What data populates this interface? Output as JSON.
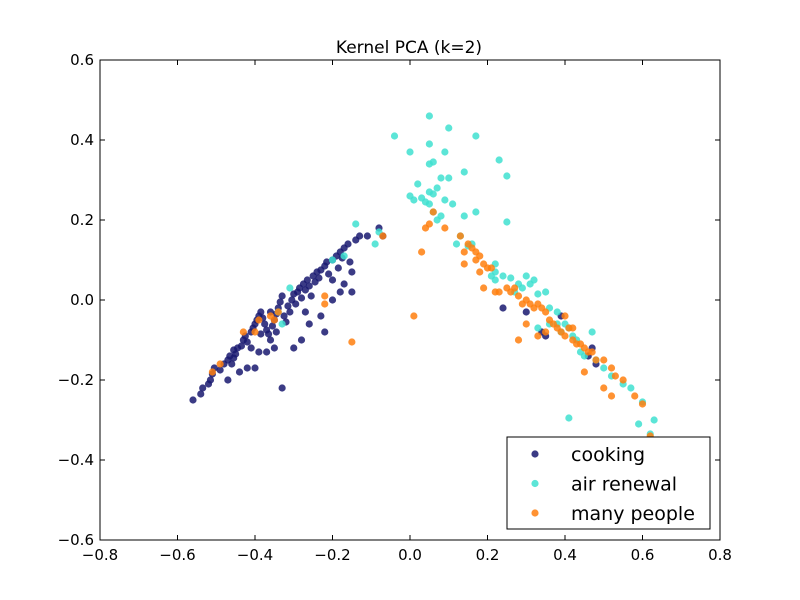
{
  "chart_data": {
    "type": "scatter",
    "title": "Kernel PCA (k=2)",
    "xlabel": "",
    "ylabel": "",
    "xlim": [
      -0.8,
      0.8
    ],
    "ylim": [
      -0.6,
      0.6
    ],
    "xticks": [
      -0.8,
      -0.6,
      -0.4,
      -0.2,
      0.0,
      0.2,
      0.4,
      0.6,
      0.8
    ],
    "xtick_labels": [
      "−0.8",
      "−0.6",
      "−0.4",
      "−0.2",
      "0.0",
      "0.2",
      "0.4",
      "0.6",
      "0.8"
    ],
    "yticks": [
      -0.6,
      -0.4,
      -0.2,
      0.0,
      0.2,
      0.4,
      0.6
    ],
    "ytick_labels": [
      "−0.6",
      "−0.4",
      "−0.2",
      "0.0",
      "0.2",
      "0.4",
      "0.6"
    ],
    "grid": false,
    "legend_position": "bottom-right",
    "series": [
      {
        "name": "cooking",
        "color": "#191970",
        "points": [
          [
            -0.56,
            -0.25
          ],
          [
            -0.54,
            -0.235
          ],
          [
            -0.535,
            -0.22
          ],
          [
            -0.52,
            -0.21
          ],
          [
            -0.515,
            -0.2
          ],
          [
            -0.51,
            -0.185
          ],
          [
            -0.505,
            -0.17
          ],
          [
            -0.49,
            -0.175
          ],
          [
            -0.48,
            -0.16
          ],
          [
            -0.47,
            -0.15
          ],
          [
            -0.465,
            -0.14
          ],
          [
            -0.455,
            -0.125
          ],
          [
            -0.45,
            -0.135
          ],
          [
            -0.445,
            -0.12
          ],
          [
            -0.435,
            -0.115
          ],
          [
            -0.43,
            -0.1
          ],
          [
            -0.425,
            -0.09
          ],
          [
            -0.42,
            -0.105
          ],
          [
            -0.41,
            -0.08
          ],
          [
            -0.405,
            -0.07
          ],
          [
            -0.4,
            -0.06
          ],
          [
            -0.395,
            -0.05
          ],
          [
            -0.39,
            -0.04
          ],
          [
            -0.385,
            -0.03
          ],
          [
            -0.38,
            -0.045
          ],
          [
            -0.375,
            -0.06
          ],
          [
            -0.37,
            -0.075
          ],
          [
            -0.365,
            -0.085
          ],
          [
            -0.36,
            -0.1
          ],
          [
            -0.355,
            -0.065
          ],
          [
            -0.35,
            -0.05
          ],
          [
            -0.345,
            -0.035
          ],
          [
            -0.34,
            -0.02
          ],
          [
            -0.335,
            -0.005
          ],
          [
            -0.33,
            0.01
          ],
          [
            -0.325,
            -0.04
          ],
          [
            -0.32,
            -0.055
          ],
          [
            -0.315,
            -0.015
          ],
          [
            -0.31,
            -0.03
          ],
          [
            -0.305,
            0.0
          ],
          [
            -0.3,
            0.015
          ],
          [
            -0.295,
            -0.01
          ],
          [
            -0.29,
            0.02
          ],
          [
            -0.285,
            0.03
          ],
          [
            -0.28,
            0.005
          ],
          [
            -0.275,
            0.04
          ],
          [
            -0.27,
            0.025
          ],
          [
            -0.265,
            0.05
          ],
          [
            -0.26,
            0.035
          ],
          [
            -0.255,
            0.01
          ],
          [
            -0.25,
            0.06
          ],
          [
            -0.245,
            0.045
          ],
          [
            -0.24,
            0.07
          ],
          [
            -0.235,
            0.055
          ],
          [
            -0.23,
            0.075
          ],
          [
            -0.22,
            0.085
          ],
          [
            -0.215,
            0.095
          ],
          [
            -0.21,
            0.065
          ],
          [
            -0.2,
            0.1
          ],
          [
            -0.19,
            0.11
          ],
          [
            -0.185,
            0.08
          ],
          [
            -0.18,
            0.12
          ],
          [
            -0.175,
            0.105
          ],
          [
            -0.17,
            0.13
          ],
          [
            -0.16,
            0.14
          ],
          [
            -0.155,
            0.095
          ],
          [
            -0.15,
            0.07
          ],
          [
            -0.14,
            0.15
          ],
          [
            -0.13,
            0.16
          ],
          [
            -0.11,
            0.16
          ],
          [
            -0.08,
            0.18
          ],
          [
            -0.07,
            0.16
          ],
          [
            -0.47,
            -0.2
          ],
          [
            -0.44,
            -0.18
          ],
          [
            -0.42,
            -0.17
          ],
          [
            -0.4,
            -0.17
          ],
          [
            -0.39,
            -0.13
          ],
          [
            -0.37,
            -0.13
          ],
          [
            -0.35,
            -0.12
          ],
          [
            -0.33,
            -0.22
          ],
          [
            -0.3,
            -0.12
          ],
          [
            -0.28,
            -0.1
          ],
          [
            -0.26,
            -0.06
          ],
          [
            -0.23,
            -0.04
          ],
          [
            -0.22,
            -0.08
          ],
          [
            -0.2,
            0.0
          ],
          [
            -0.18,
            0.02
          ],
          [
            -0.15,
            0.02
          ],
          [
            -0.46,
            -0.16
          ],
          [
            -0.455,
            -0.145
          ],
          [
            -0.41,
            -0.12
          ],
          [
            -0.385,
            -0.085
          ],
          [
            -0.36,
            -0.03
          ],
          [
            -0.345,
            -0.08
          ],
          [
            -0.27,
            -0.03
          ],
          [
            -0.2,
            0.05
          ],
          [
            -0.17,
            0.04
          ],
          [
            0.24,
            -0.02
          ],
          [
            0.3,
            -0.03
          ],
          [
            0.34,
            -0.08
          ],
          [
            0.35,
            -0.09
          ],
          [
            0.39,
            -0.04
          ],
          [
            0.46,
            -0.14
          ],
          [
            0.47,
            -0.12
          ],
          [
            0.48,
            -0.16
          ]
        ]
      },
      {
        "name": "air renewal",
        "color": "#40e0d0",
        "points": [
          [
            0.05,
            0.46
          ],
          [
            0.1,
            0.43
          ],
          [
            -0.04,
            0.41
          ],
          [
            0.17,
            0.41
          ],
          [
            0.05,
            0.39
          ],
          [
            0.0,
            0.37
          ],
          [
            0.09,
            0.37
          ],
          [
            0.06,
            0.345
          ],
          [
            0.05,
            0.34
          ],
          [
            0.23,
            0.35
          ],
          [
            0.14,
            0.32
          ],
          [
            0.25,
            0.31
          ],
          [
            0.08,
            0.305
          ],
          [
            0.1,
            0.305
          ],
          [
            0.07,
            0.28
          ],
          [
            0.05,
            0.27
          ],
          [
            0.06,
            0.265
          ],
          [
            0.02,
            0.29
          ],
          [
            0.0,
            0.26
          ],
          [
            0.01,
            0.25
          ],
          [
            0.03,
            0.255
          ],
          [
            0.04,
            0.245
          ],
          [
            0.09,
            0.25
          ],
          [
            0.11,
            0.24
          ],
          [
            0.17,
            0.22
          ],
          [
            0.25,
            0.195
          ],
          [
            0.07,
            0.2
          ],
          [
            0.05,
            0.24
          ],
          [
            0.06,
            0.22
          ],
          [
            0.08,
            0.21
          ],
          [
            0.14,
            0.21
          ],
          [
            0.13,
            0.16
          ],
          [
            0.12,
            0.14
          ],
          [
            0.15,
            0.135
          ],
          [
            0.16,
            0.14
          ],
          [
            0.22,
            0.07
          ],
          [
            0.24,
            0.06
          ],
          [
            0.26,
            0.055
          ],
          [
            0.22,
            0.05
          ],
          [
            0.28,
            0.04
          ],
          [
            0.29,
            0.03
          ],
          [
            0.31,
            0.04
          ],
          [
            0.3,
            0.06
          ],
          [
            0.32,
            0.05
          ],
          [
            0.33,
            0.015
          ],
          [
            0.35,
            0.02
          ],
          [
            0.36,
            -0.02
          ],
          [
            0.38,
            -0.03
          ],
          [
            0.4,
            -0.06
          ],
          [
            0.41,
            -0.07
          ],
          [
            0.42,
            -0.09
          ],
          [
            0.43,
            -0.1
          ],
          [
            0.44,
            -0.13
          ],
          [
            0.45,
            -0.14
          ],
          [
            0.47,
            -0.08
          ],
          [
            0.48,
            -0.15
          ],
          [
            0.5,
            -0.17
          ],
          [
            0.52,
            -0.19
          ],
          [
            0.55,
            -0.21
          ],
          [
            0.57,
            -0.22
          ],
          [
            0.6,
            -0.255
          ],
          [
            0.63,
            -0.3
          ],
          [
            0.59,
            -0.31
          ],
          [
            0.41,
            -0.295
          ],
          [
            0.62,
            -0.335
          ],
          [
            0.64,
            -0.35
          ],
          [
            -0.17,
            0.11
          ],
          [
            -0.2,
            0.1
          ],
          [
            -0.09,
            0.14
          ],
          [
            -0.08,
            0.17
          ],
          [
            -0.14,
            0.19
          ],
          [
            -0.31,
            0.03
          ],
          [
            -0.33,
            -0.06
          ],
          [
            -0.34,
            -0.03
          ],
          [
            0.33,
            -0.07
          ],
          [
            0.38,
            -0.06
          ],
          [
            0.27,
            0.02
          ],
          [
            0.39,
            -0.08
          ],
          [
            0.36,
            -0.06
          ],
          [
            0.22,
            0.09
          ],
          [
            0.21,
            0.06
          ]
        ]
      },
      {
        "name": "many people",
        "color": "#ff7f0e",
        "points": [
          [
            -0.51,
            -0.18
          ],
          [
            -0.49,
            -0.16
          ],
          [
            -0.43,
            -0.08
          ],
          [
            -0.4,
            -0.08
          ],
          [
            -0.39,
            -0.05
          ],
          [
            -0.36,
            -0.04
          ],
          [
            -0.35,
            -0.05
          ],
          [
            -0.34,
            -0.03
          ],
          [
            -0.22,
            0.01
          ],
          [
            -0.22,
            -0.01
          ],
          [
            -0.15,
            -0.105
          ],
          [
            -0.07,
            0.16
          ],
          [
            0.01,
            -0.04
          ],
          [
            0.04,
            0.18
          ],
          [
            0.05,
            0.19
          ],
          [
            0.06,
            0.22
          ],
          [
            0.09,
            0.18
          ],
          [
            0.13,
            0.16
          ],
          [
            0.14,
            0.12
          ],
          [
            0.15,
            0.14
          ],
          [
            0.16,
            0.13
          ],
          [
            0.17,
            0.12
          ],
          [
            0.18,
            0.11
          ],
          [
            0.19,
            0.09
          ],
          [
            0.2,
            0.08
          ],
          [
            0.21,
            0.08
          ],
          [
            0.17,
            0.1
          ],
          [
            0.14,
            0.09
          ],
          [
            0.03,
            0.12
          ],
          [
            0.18,
            0.07
          ],
          [
            0.19,
            0.03
          ],
          [
            0.22,
            0.02
          ],
          [
            0.23,
            0.02
          ],
          [
            0.25,
            0.03
          ],
          [
            0.26,
            0.02
          ],
          [
            0.27,
            0.03
          ],
          [
            0.28,
            0.01
          ],
          [
            0.29,
            -0.01
          ],
          [
            0.3,
            0.0
          ],
          [
            0.31,
            -0.01
          ],
          [
            0.32,
            -0.02
          ],
          [
            0.33,
            -0.01
          ],
          [
            0.34,
            -0.02
          ],
          [
            0.35,
            -0.03
          ],
          [
            0.36,
            -0.05
          ],
          [
            0.37,
            -0.06
          ],
          [
            0.38,
            -0.07
          ],
          [
            0.39,
            -0.08
          ],
          [
            0.4,
            -0.09
          ],
          [
            0.41,
            -0.07
          ],
          [
            0.42,
            -0.1
          ],
          [
            0.43,
            -0.11
          ],
          [
            0.44,
            -0.11
          ],
          [
            0.45,
            -0.12
          ],
          [
            0.46,
            -0.13
          ],
          [
            0.47,
            -0.13
          ],
          [
            0.48,
            -0.15
          ],
          [
            0.5,
            -0.15
          ],
          [
            0.52,
            -0.17
          ],
          [
            0.53,
            -0.19
          ],
          [
            0.55,
            -0.2
          ],
          [
            0.58,
            -0.24
          ],
          [
            0.6,
            -0.26
          ],
          [
            0.62,
            -0.34
          ],
          [
            0.3,
            -0.06
          ],
          [
            0.28,
            -0.1
          ],
          [
            0.33,
            -0.09
          ],
          [
            0.35,
            -0.08
          ],
          [
            0.4,
            -0.04
          ],
          [
            0.42,
            -0.07
          ],
          [
            0.45,
            -0.18
          ],
          [
            0.5,
            -0.22
          ],
          [
            0.52,
            -0.24
          ]
        ]
      }
    ]
  }
}
